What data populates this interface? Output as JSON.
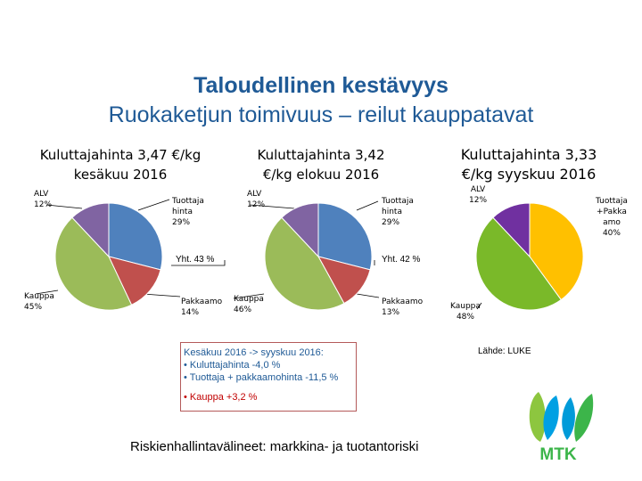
{
  "title": "Taloudellinen kestävyys",
  "subtitle": "Ruokaketjun toimivuus – reilut kauppatavat",
  "chart_data": [
    {
      "type": "pie",
      "title_lines": [
        "Kuluttajahinta 3,47 €/kg",
        "kesäkuu 2016"
      ],
      "labels": [
        "Tuottajahinta",
        "Pakkaamo",
        "Kauppa",
        "ALV"
      ],
      "label_texts": [
        [
          "Tuottaja",
          "hinta",
          "29%"
        ],
        [
          "Pakkaamo",
          "14%"
        ],
        [
          "Kauppa",
          "45%"
        ],
        [
          "ALV",
          "12%"
        ]
      ],
      "values": [
        29,
        14,
        45,
        12
      ],
      "colors": [
        "#4f81bd",
        "#c0504d",
        "#9bbb59",
        "#8064a2"
      ],
      "total_label": "Yht. 43 %"
    },
    {
      "type": "pie",
      "title_lines": [
        "Kuluttajahinta 3,42",
        "€/kg elokuu 2016"
      ],
      "labels": [
        "Tuottajahinta",
        "Pakkaamo",
        "Kauppa",
        "ALV"
      ],
      "label_texts": [
        [
          "Tuottaja",
          "hinta",
          "29%"
        ],
        [
          "Pakkaamo",
          "13%"
        ],
        [
          "Kauppa",
          "46%"
        ],
        [
          "ALV",
          "12%"
        ]
      ],
      "values": [
        29,
        13,
        46,
        12
      ],
      "colors": [
        "#4f81bd",
        "#c0504d",
        "#9bbb59",
        "#8064a2"
      ],
      "total_label": "Yht. 42 %"
    },
    {
      "type": "pie",
      "title_lines": [
        "Kuluttajahinta 3,33",
        "€/kg syyskuu 2016"
      ],
      "labels": [
        "Tuottaja+Pakkaamo",
        "Kauppa",
        "ALV"
      ],
      "label_texts": [
        [
          "Tuottaja",
          "+Pakka",
          "amo",
          "40%"
        ],
        [
          "Kauppa",
          "48%"
        ],
        [
          "ALV",
          "12%"
        ]
      ],
      "values": [
        40,
        48,
        12
      ],
      "colors": [
        "#ffc000",
        "#7ab929",
        "#7030a0"
      ]
    }
  ],
  "summary": {
    "line1": "Kesäkuu 2016 -> syyskuu 2016:",
    "line2": "• Kuluttajahinta -4,0 %",
    "line3": "• Tuottaja + pakkaamohinta -11,5 %",
    "line4": "• Kauppa +3,2 %"
  },
  "source": "Lähde: LUKE",
  "footer": "Riskienhallintavälineet: markkina- ja tuotantoriski",
  "logo": {
    "text": "MTK",
    "colors": [
      "#8dc63f",
      "#00a0e3",
      "#009bd9",
      "#3cb54a"
    ]
  },
  "colors": {
    "title": "#1f5a96",
    "box_border": "#b45a5a",
    "highlight": "#c00000"
  }
}
